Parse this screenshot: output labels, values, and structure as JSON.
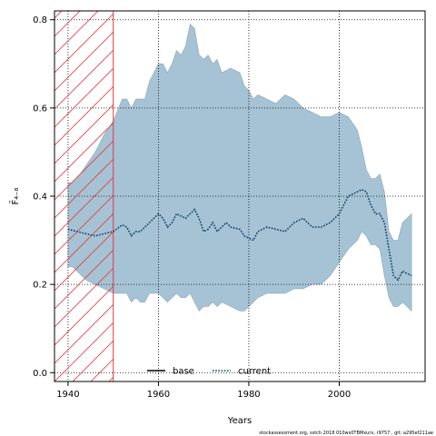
{
  "chart_data": {
    "type": "area",
    "xlabel": "Years",
    "ylabel": "F̄₄₋₈",
    "xlim": [
      1937,
      2019
    ],
    "ylim": [
      -0.02,
      0.82
    ],
    "x_ticks": [
      1940,
      1960,
      1980,
      2000
    ],
    "y_ticks": [
      0.0,
      0.2,
      0.4,
      0.6,
      0.8
    ],
    "x_tick_labels": [
      "1940",
      "1960",
      "1980",
      "2000"
    ],
    "y_tick_labels": [
      "0.0",
      "0.2",
      "0.4",
      "0.6",
      "0.8"
    ],
    "grid": true,
    "legend": {
      "placement": "bottom",
      "entries": [
        "base",
        "current"
      ]
    },
    "hatched_region": {
      "x_start": 1937,
      "x_end": 1950,
      "color": "#e8393a"
    },
    "band": {
      "color": "#a5c3d4",
      "x": [
        1940,
        1941,
        1942,
        1944,
        1946,
        1948,
        1950,
        1952,
        1953,
        1954,
        1955,
        1956,
        1957,
        1958,
        1960,
        1961,
        1962,
        1963,
        1964,
        1965,
        1966,
        1967,
        1968,
        1969,
        1970,
        1971,
        1972,
        1973,
        1974,
        1976,
        1978,
        1979,
        1980,
        1981,
        1982,
        1984,
        1986,
        1988,
        1990,
        1992,
        1994,
        1996,
        1998,
        2000,
        2002,
        2004,
        2005,
        2006,
        2007,
        2008,
        2009,
        2010,
        2011,
        2012,
        2013,
        2014,
        2016
      ],
      "upper": [
        0.43,
        0.43,
        0.44,
        0.47,
        0.5,
        0.54,
        0.57,
        0.62,
        0.62,
        0.6,
        0.62,
        0.62,
        0.62,
        0.66,
        0.7,
        0.7,
        0.68,
        0.7,
        0.73,
        0.72,
        0.74,
        0.79,
        0.78,
        0.72,
        0.71,
        0.72,
        0.7,
        0.71,
        0.68,
        0.69,
        0.68,
        0.65,
        0.64,
        0.62,
        0.63,
        0.62,
        0.61,
        0.63,
        0.62,
        0.6,
        0.59,
        0.58,
        0.58,
        0.59,
        0.58,
        0.55,
        0.51,
        0.46,
        0.44,
        0.44,
        0.45,
        0.41,
        0.32,
        0.3,
        0.3,
        0.34,
        0.36
      ],
      "lower": [
        0.24,
        0.24,
        0.23,
        0.21,
        0.2,
        0.19,
        0.18,
        0.18,
        0.18,
        0.16,
        0.17,
        0.16,
        0.16,
        0.18,
        0.18,
        0.17,
        0.16,
        0.17,
        0.18,
        0.17,
        0.17,
        0.18,
        0.16,
        0.14,
        0.15,
        0.15,
        0.16,
        0.15,
        0.16,
        0.15,
        0.14,
        0.14,
        0.15,
        0.16,
        0.17,
        0.18,
        0.18,
        0.18,
        0.19,
        0.19,
        0.2,
        0.2,
        0.22,
        0.25,
        0.28,
        0.3,
        0.32,
        0.31,
        0.29,
        0.29,
        0.28,
        0.22,
        0.17,
        0.15,
        0.15,
        0.16,
        0.14
      ]
    },
    "series": [
      {
        "name": "base",
        "style": "solid",
        "color": "#000000",
        "x": [],
        "values": []
      },
      {
        "name": "current",
        "style": "dotted",
        "color": "#0a3a64",
        "x": [
          1940,
          1942,
          1944,
          1946,
          1948,
          1950,
          1952,
          1953,
          1954,
          1955,
          1956,
          1958,
          1960,
          1961,
          1962,
          1963,
          1964,
          1965,
          1966,
          1967,
          1968,
          1969,
          1970,
          1971,
          1972,
          1973,
          1974,
          1975,
          1976,
          1978,
          1979,
          1980,
          1981,
          1982,
          1984,
          1986,
          1988,
          1990,
          1992,
          1994,
          1996,
          1998,
          2000,
          2002,
          2004,
          2005,
          2006,
          2007,
          2008,
          2009,
          2010,
          2011,
          2012,
          2013,
          2014,
          2016
        ],
        "values": [
          0.325,
          0.32,
          0.315,
          0.31,
          0.315,
          0.32,
          0.335,
          0.33,
          0.31,
          0.32,
          0.32,
          0.34,
          0.36,
          0.35,
          0.33,
          0.34,
          0.36,
          0.355,
          0.35,
          0.36,
          0.37,
          0.35,
          0.32,
          0.325,
          0.34,
          0.32,
          0.33,
          0.34,
          0.33,
          0.325,
          0.31,
          0.305,
          0.3,
          0.32,
          0.33,
          0.325,
          0.32,
          0.34,
          0.35,
          0.33,
          0.33,
          0.34,
          0.36,
          0.4,
          0.41,
          0.415,
          0.41,
          0.38,
          0.36,
          0.36,
          0.34,
          0.28,
          0.22,
          0.21,
          0.23,
          0.22
        ]
      }
    ]
  },
  "footer_text": "stockassessment.org, sstch 2018 010ws0TBMxurv, r9757 , git: a295ef211ae"
}
